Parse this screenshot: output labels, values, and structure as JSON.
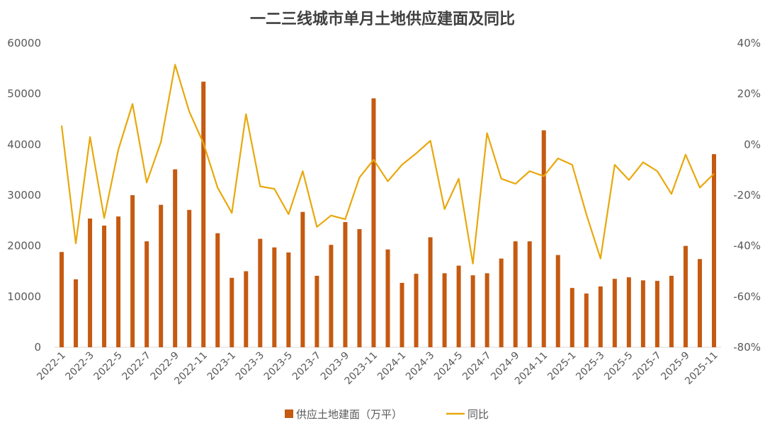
{
  "chart_data": {
    "type": "bar+line",
    "title": "一二三线城市单月土地供应建面及同比",
    "categories": [
      "2022-1",
      "2022-2",
      "2022-3",
      "2022-4",
      "2022-5",
      "2022-6",
      "2022-7",
      "2022-8",
      "2022-9",
      "2022-10",
      "2022-11",
      "2022-12",
      "2023-1",
      "2023-2",
      "2023-3",
      "2023-4",
      "2023-5",
      "2023-6",
      "2023-7",
      "2023-8",
      "2023-9",
      "2023-10",
      "2023-11",
      "2023-12",
      "2024-1",
      "2024-2",
      "2024-3",
      "2024-4",
      "2024-5",
      "2024-6",
      "2024-7",
      "2024-8",
      "2024-9",
      "2024-10",
      "2024-11",
      "2024-12",
      "2025-1",
      "2025-2",
      "2025-3",
      "2025-4",
      "2025-5",
      "2025-6",
      "2025-7",
      "2025-8",
      "2025-9",
      "2025-10",
      "2025-11"
    ],
    "x_tick_labels": [
      "2022-1",
      "2022-3",
      "2022-5",
      "2022-7",
      "2022-9",
      "2022-11",
      "2023-1",
      "2023-3",
      "2023-5",
      "2023-7",
      "2023-9",
      "2023-11",
      "2024-1",
      "2024-3",
      "2024-5",
      "2024-7",
      "2024-9",
      "2024-11",
      "2025-1",
      "2025-3",
      "2025-5",
      "2025-7",
      "2025-9",
      "2025-11"
    ],
    "series": [
      {
        "name": "供应土地建面（万平）",
        "type": "bar",
        "axis": "left",
        "color": "#C55A11",
        "values": [
          18800,
          13400,
          25400,
          24000,
          25800,
          30000,
          20900,
          28100,
          35100,
          27100,
          52400,
          22500,
          13700,
          15000,
          21400,
          19700,
          18700,
          26700,
          14100,
          20200,
          24700,
          23300,
          49100,
          19300,
          12700,
          14500,
          21700,
          14600,
          16100,
          14200,
          14600,
          17500,
          20900,
          20900,
          42800,
          18200,
          11700,
          10600,
          12000,
          13500,
          13800,
          13200,
          13100,
          14100,
          20000,
          17400,
          38100
        ]
      },
      {
        "name": "同比",
        "type": "line",
        "axis": "right",
        "color": "#E8A80C",
        "values": [
          7.5,
          -39,
          3,
          -29,
          -2,
          16,
          -15,
          1,
          31.5,
          13,
          0.5,
          -17,
          -27,
          12,
          -16.5,
          -17.5,
          -27.5,
          -10.5,
          -32.5,
          -28,
          -29.5,
          -13,
          -6,
          -14.5,
          -8,
          -3.5,
          1.5,
          -25.5,
          -13.5,
          -47,
          4.5,
          -13.5,
          -15.5,
          -10.5,
          -12.5,
          -5.5,
          -8,
          -27.5,
          -45,
          -8,
          -14,
          -7,
          -10.5,
          -19.5,
          -4,
          -17,
          -11.5
        ]
      }
    ],
    "y_left": {
      "min": 0,
      "max": 60000,
      "ticks": [
        "0",
        "10000",
        "20000",
        "30000",
        "40000",
        "50000",
        "60000"
      ]
    },
    "y_right": {
      "min": -80,
      "max": 40,
      "ticks": [
        "-80%",
        "-60%",
        "-40%",
        "-20%",
        "0%",
        "20%",
        "40%"
      ]
    },
    "legend": {
      "position": "bottom",
      "items": [
        "供应土地建面（万平）",
        "同比"
      ]
    },
    "grid": false
  }
}
